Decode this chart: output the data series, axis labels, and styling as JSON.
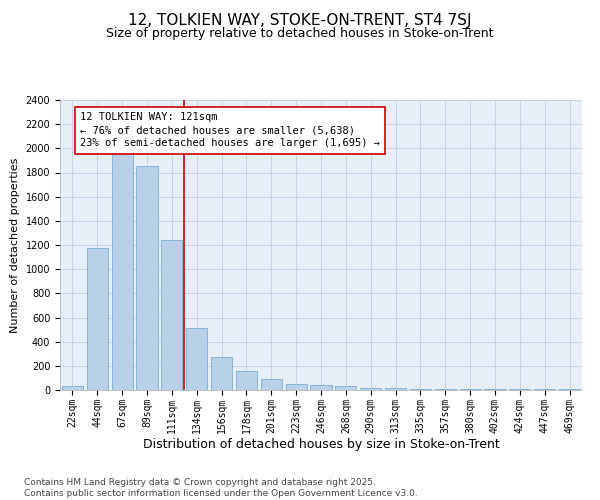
{
  "title": "12, TOLKIEN WAY, STOKE-ON-TRENT, ST4 7SJ",
  "subtitle": "Size of property relative to detached houses in Stoke-on-Trent",
  "xlabel": "Distribution of detached houses by size in Stoke-on-Trent",
  "ylabel": "Number of detached properties",
  "categories": [
    "22sqm",
    "44sqm",
    "67sqm",
    "89sqm",
    "111sqm",
    "134sqm",
    "156sqm",
    "178sqm",
    "201sqm",
    "223sqm",
    "246sqm",
    "268sqm",
    "290sqm",
    "313sqm",
    "335sqm",
    "357sqm",
    "380sqm",
    "402sqm",
    "424sqm",
    "447sqm",
    "469sqm"
  ],
  "values": [
    30,
    1175,
    1975,
    1855,
    1240,
    515,
    270,
    155,
    90,
    50,
    40,
    35,
    20,
    15,
    5,
    5,
    5,
    5,
    5,
    5,
    5
  ],
  "bar_color": "#b8d0e8",
  "bar_edge_color": "#7aafd4",
  "vline_x": 4.5,
  "vline_color": "#cc0000",
  "annotation_text": "12 TOLKIEN WAY: 121sqm\n← 76% of detached houses are smaller (5,638)\n23% of semi-detached houses are larger (1,695) →",
  "annotation_box_color": "#cc0000",
  "ylim": [
    0,
    2400
  ],
  "yticks": [
    0,
    200,
    400,
    600,
    800,
    1000,
    1200,
    1400,
    1600,
    1800,
    2000,
    2200,
    2400
  ],
  "grid_color": "#c8d4e4",
  "background_color": "#e8eef8",
  "footer_text": "Contains HM Land Registry data © Crown copyright and database right 2025.\nContains public sector information licensed under the Open Government Licence v3.0.",
  "title_fontsize": 11,
  "subtitle_fontsize": 9,
  "xlabel_fontsize": 9,
  "ylabel_fontsize": 8,
  "tick_fontsize": 7,
  "annotation_fontsize": 7.5,
  "footer_fontsize": 6.5
}
